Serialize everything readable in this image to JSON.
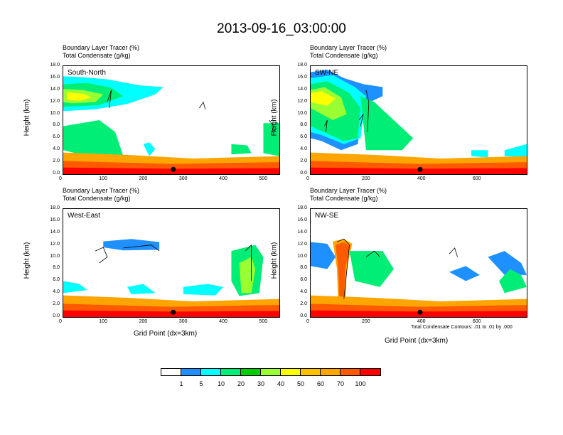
{
  "title": "2013-09-16_03:00:00",
  "subtitle_line1": "Boundary Layer Tracer    (%)",
  "subtitle_line2": "Total Condensate    (g/kg)",
  "ylabel": "Height (km)",
  "xlabel": "Grid Point (dx=3km)",
  "contour_note": "Total Condensate Contours: .01 to .01 by .000",
  "colors": {
    "fill_levels": [
      "#ffffff",
      "#1e90ff",
      "#00ffff",
      "#00ee76",
      "#00cd00",
      "#9aff32",
      "#ffff00",
      "#ffc000",
      "#ffa500",
      "#ff5a00",
      "#ff0000"
    ],
    "contour": "#000000",
    "marker": "#000000"
  },
  "colorbar": {
    "labels": [
      "1",
      "5",
      "10",
      "20",
      "30",
      "40",
      "50",
      "60",
      "70",
      "100"
    ]
  },
  "chart_data": [
    {
      "type": "heatmap",
      "panel": "South-North",
      "xlim": [
        0,
        540
      ],
      "ylim": [
        0,
        18
      ],
      "yticks": [
        "0.0",
        "2.0",
        "4.0",
        "6.0",
        "8.0",
        "10.0",
        "12.0",
        "14.0",
        "16.0",
        "18.0"
      ],
      "xticks": [
        0,
        100,
        200,
        300,
        400,
        500
      ],
      "marker": {
        "x": 275,
        "y": 0.8
      }
    },
    {
      "type": "heatmap",
      "panel": "SW-NE",
      "xlim": [
        0,
        780
      ],
      "ylim": [
        0,
        18
      ],
      "yticks": [
        "0.0",
        "2.0",
        "4.0",
        "6.0",
        "8.0",
        "10.0",
        "12.0",
        "14.0",
        "16.0",
        "18.0"
      ],
      "xticks": [
        0,
        200,
        400,
        600
      ],
      "marker": {
        "x": 395,
        "y": 0.8
      }
    },
    {
      "type": "heatmap",
      "panel": "West-East",
      "xlim": [
        0,
        540
      ],
      "ylim": [
        0,
        18
      ],
      "yticks": [
        "0.0",
        "2.0",
        "4.0",
        "6.0",
        "8.0",
        "10.0",
        "12.0",
        "14.0",
        "16.0",
        "18.0"
      ],
      "xticks": [
        0,
        100,
        200,
        300,
        400,
        500
      ],
      "marker": {
        "x": 275,
        "y": 0.8
      }
    },
    {
      "type": "heatmap",
      "panel": "NW-SE",
      "xlim": [
        0,
        780
      ],
      "ylim": [
        0,
        18
      ],
      "yticks": [
        "0.0",
        "2.0",
        "4.0",
        "6.0",
        "8.0",
        "10.0",
        "12.0",
        "14.0",
        "16.0",
        "18.0"
      ],
      "xticks": [
        0,
        200,
        400,
        600
      ],
      "marker": {
        "x": 395,
        "y": 0.8
      }
    }
  ]
}
